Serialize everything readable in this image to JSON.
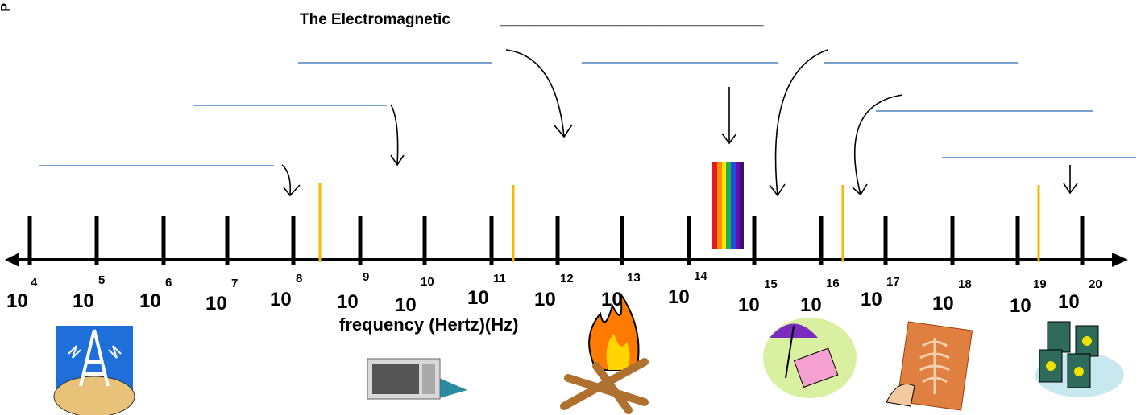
{
  "corner_text": "P",
  "title": "The Electromagnetic",
  "title_blank": "_______________________________",
  "axis_label": "frequency (Hertz)(Hz)",
  "ticks": [
    {
      "base": "10",
      "exponent": "4"
    },
    {
      "base": "10",
      "exponent": "5"
    },
    {
      "base": "10",
      "exponent": "6"
    },
    {
      "base": "10",
      "exponent": "7"
    },
    {
      "base": "10",
      "exponent": "8"
    },
    {
      "base": "10",
      "exponent": "9"
    },
    {
      "base": "10",
      "exponent": "10"
    },
    {
      "base": "10",
      "exponent": "11"
    },
    {
      "base": "10",
      "exponent": "12"
    },
    {
      "base": "10",
      "exponent": "13"
    },
    {
      "base": "10",
      "exponent": "14"
    },
    {
      "base": "10",
      "exponent": "15"
    },
    {
      "base": "10",
      "exponent": "16"
    },
    {
      "base": "10",
      "exponent": "17"
    },
    {
      "base": "10",
      "exponent": "18"
    },
    {
      "base": "10",
      "exponent": "19"
    },
    {
      "base": "10",
      "exponent": "20"
    }
  ]
}
